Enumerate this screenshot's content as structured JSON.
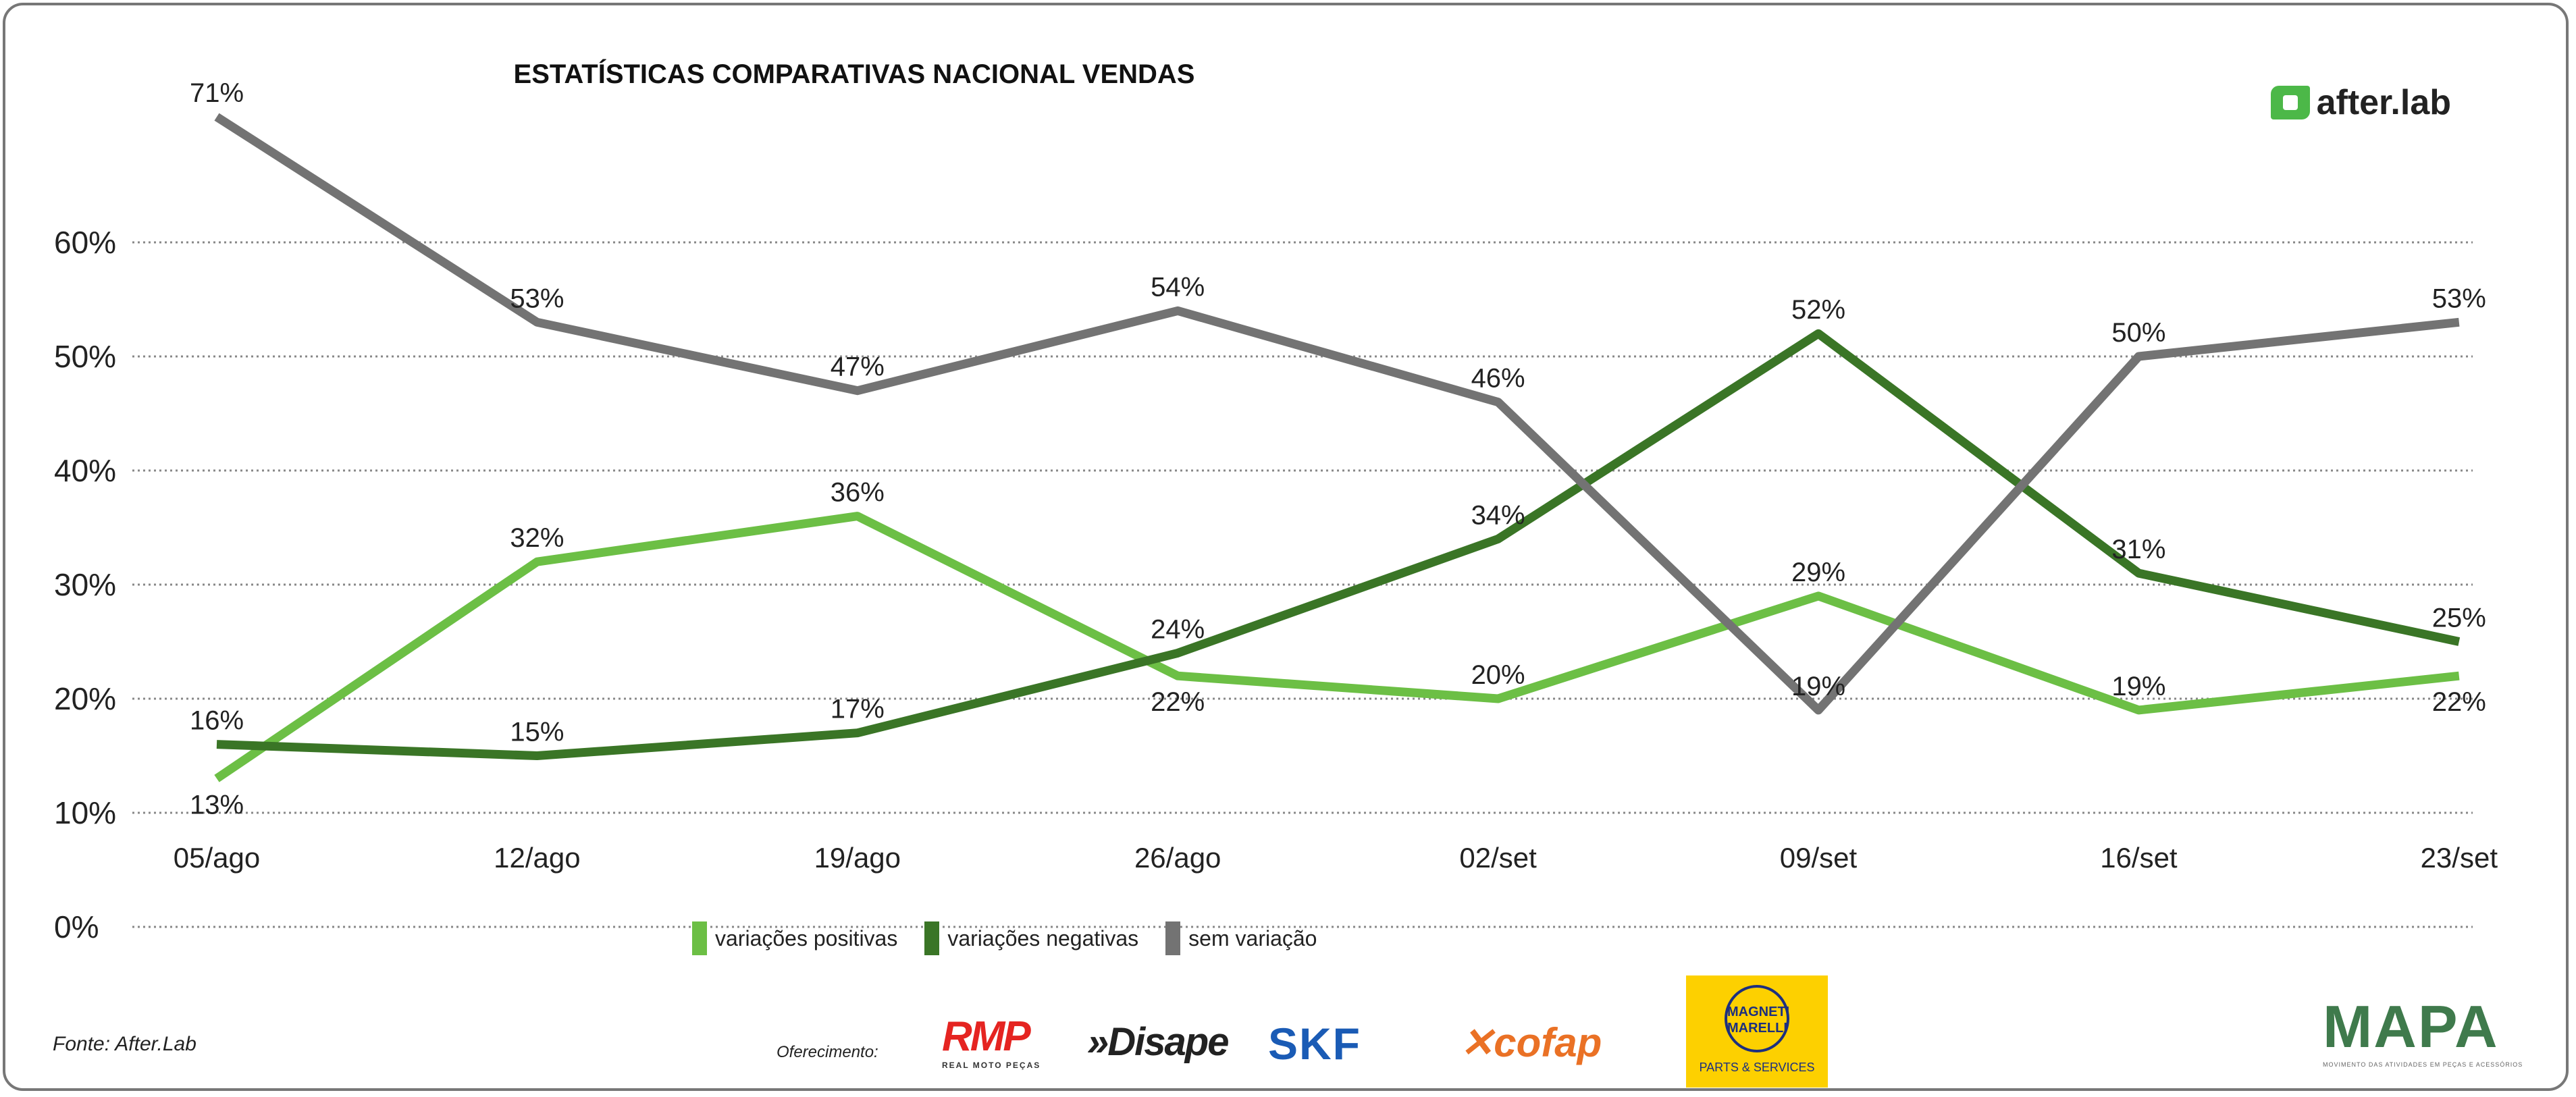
{
  "chart_data": {
    "type": "line",
    "title": "ESTATÍSTICAS COMPARATIVAS NACIONAL VENDAS",
    "categories": [
      "05/ago",
      "12/ago",
      "19/ago",
      "26/ago",
      "02/set",
      "09/set",
      "16/set",
      "23/set"
    ],
    "yticks": [
      "0%",
      "10%",
      "20%",
      "30%",
      "40%",
      "50%",
      "60%"
    ],
    "ylim": [
      0,
      60
    ],
    "grid": true,
    "legend_position": "bottom",
    "series": [
      {
        "name": "variações positivas",
        "color": "#6cbf45",
        "values": [
          13,
          32,
          36,
          22,
          20,
          29,
          19,
          22
        ]
      },
      {
        "name": "variações negativas",
        "color": "#3a7526",
        "values": [
          16,
          15,
          17,
          24,
          34,
          52,
          31,
          25
        ]
      },
      {
        "name": "sem variação",
        "color": "#737373",
        "values": [
          71,
          53,
          47,
          54,
          46,
          19,
          50,
          53
        ]
      }
    ]
  },
  "brand": "after.lab",
  "source": "Fonte: After.Lab",
  "sponsors_label": "Oferecimento:",
  "sponsors": {
    "rmp": "RMP",
    "rmp_sub": "REAL MOTO PEÇAS",
    "disape": "»Disape",
    "skf": "SKF",
    "cofap": "✕cofap",
    "magneti": "MAGNETI MARELLI",
    "magneti_sub": "PARTS & SERVICES",
    "mapa": "MAPA",
    "mapa_sub": "MOVIMENTO DAS ATIVIDADES EM PEÇAS E ACESSÓRIOS"
  }
}
